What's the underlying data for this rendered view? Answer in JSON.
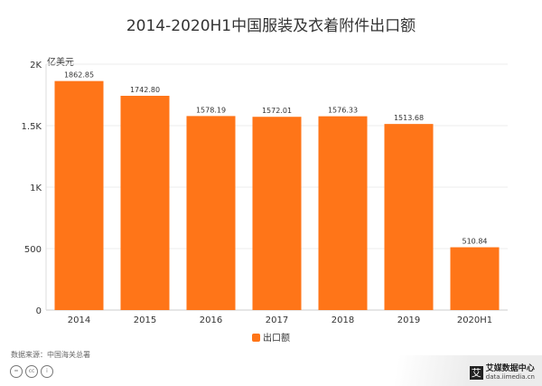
{
  "chart_data": {
    "type": "bar",
    "title": "2014-2020H1中国服装及衣着附件出口额",
    "ylabel": "亿美元",
    "categories": [
      "2014",
      "2015",
      "2016",
      "2017",
      "2018",
      "2019",
      "2020H1"
    ],
    "series": [
      {
        "name": "出口额",
        "values": [
          1862.85,
          1742.8,
          1578.19,
          1572.01,
          1576.33,
          1513.68,
          510.84
        ],
        "labels": [
          "1862.85",
          "1742.80",
          "1578.19",
          "1572.01",
          "1576.33",
          "1513.68",
          "510.84"
        ],
        "color": "#FF7518"
      }
    ],
    "ylim": [
      0,
      2000
    ],
    "yticks": [
      0,
      500,
      1000,
      1500,
      2000
    ],
    "ytick_labels": [
      "0",
      "500",
      "1K",
      "1.5K",
      "2K"
    ],
    "grid": true,
    "legend": "bottom"
  },
  "source": "数据来源：中国海关总署",
  "brand": {
    "name": "艾媒数据中心",
    "url": "data.iimedia.cn",
    "logo": "艾"
  },
  "cc_icons": [
    "=",
    "cc",
    "i"
  ]
}
